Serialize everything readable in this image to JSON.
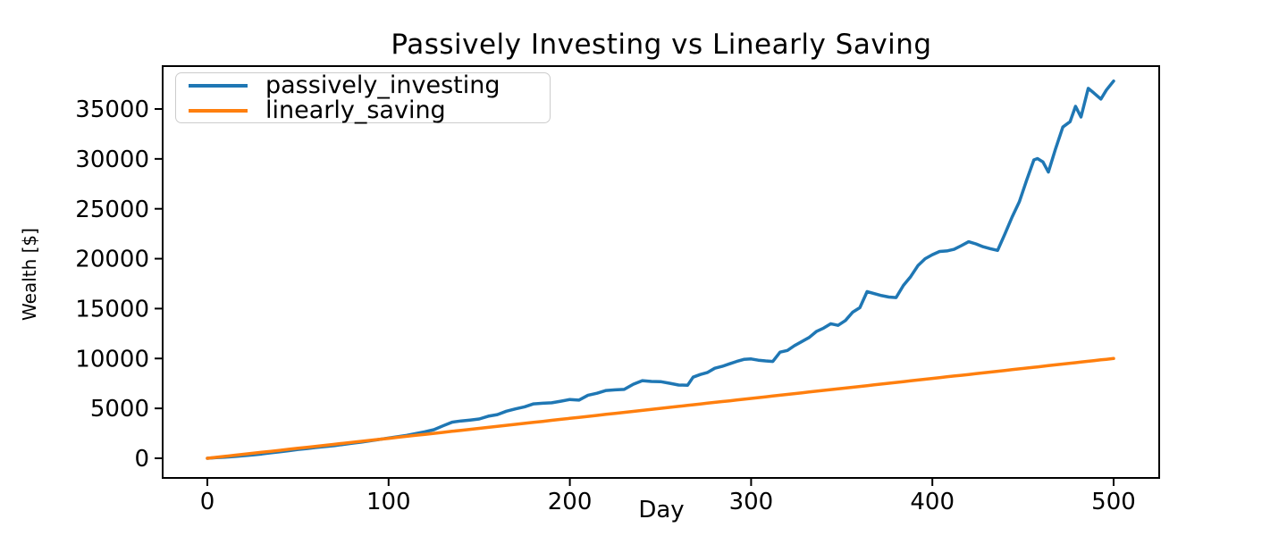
{
  "chart_data": {
    "type": "line",
    "title": "Passively Investing vs Linearly Saving",
    "xlabel": "Day",
    "ylabel": "Wealth [$]",
    "xlim": [
      -25,
      525
    ],
    "ylim": [
      -1960,
      39290
    ],
    "x_ticks": [
      0,
      100,
      200,
      300,
      400,
      500
    ],
    "y_ticks": [
      0,
      5000,
      10000,
      15000,
      20000,
      25000,
      30000,
      35000
    ],
    "grid": false,
    "legend_position": "upper left",
    "axis_color": "#000000",
    "x": [
      0,
      5,
      10,
      15,
      20,
      25,
      30,
      35,
      40,
      45,
      50,
      55,
      60,
      65,
      70,
      75,
      80,
      85,
      90,
      95,
      100,
      105,
      110,
      115,
      120,
      125,
      130,
      135,
      140,
      145,
      150,
      155,
      160,
      165,
      170,
      175,
      180,
      185,
      190,
      195,
      200,
      205,
      210,
      215,
      220,
      225,
      230,
      235,
      240,
      245,
      250,
      255,
      260,
      265,
      268,
      272,
      276,
      280,
      284,
      288,
      292,
      296,
      300,
      304,
      308,
      312,
      316,
      320,
      324,
      328,
      332,
      336,
      340,
      344,
      348,
      352,
      356,
      360,
      364,
      368,
      372,
      376,
      380,
      384,
      388,
      392,
      396,
      400,
      404,
      408,
      412,
      416,
      420,
      424,
      428,
      432,
      436,
      440,
      444,
      448,
      452,
      456,
      458,
      461,
      464,
      468,
      472,
      476,
      479,
      482,
      486,
      489,
      493,
      496,
      500
    ],
    "series": [
      {
        "name": "passively_investing",
        "color": "#1f77b4",
        "values": [
          0,
          60,
          120,
          180,
          260,
          340,
          430,
          550,
          650,
          760,
          880,
          980,
          1080,
          1170,
          1260,
          1390,
          1500,
          1620,
          1750,
          1890,
          2030,
          2160,
          2300,
          2480,
          2660,
          2860,
          3250,
          3620,
          3740,
          3830,
          3940,
          4220,
          4380,
          4720,
          4950,
          5160,
          5450,
          5510,
          5560,
          5720,
          5890,
          5830,
          6320,
          6520,
          6790,
          6860,
          6900,
          7420,
          7780,
          7700,
          7680,
          7520,
          7340,
          7320,
          8130,
          8400,
          8600,
          9020,
          9210,
          9460,
          9700,
          9910,
          9950,
          9830,
          9760,
          9700,
          10630,
          10800,
          11300,
          11700,
          12100,
          12700,
          13040,
          13480,
          13320,
          13800,
          14640,
          15090,
          16700,
          16500,
          16300,
          16160,
          16100,
          17320,
          18200,
          19300,
          20000,
          20400,
          20720,
          20780,
          20940,
          21300,
          21700,
          21480,
          21200,
          21000,
          20830,
          22460,
          24170,
          25700,
          27870,
          29900,
          30030,
          29700,
          28680,
          31030,
          33190,
          33730,
          35270,
          34190,
          37070,
          36620,
          35990,
          36900,
          37800
        ]
      },
      {
        "name": "linearly_saving",
        "color": "#ff7f0e",
        "values": [
          0,
          100,
          200,
          300,
          400,
          500,
          600,
          700,
          800,
          900,
          1000,
          1100,
          1200,
          1300,
          1400,
          1500,
          1600,
          1700,
          1800,
          1900,
          2000,
          2100,
          2200,
          2300,
          2400,
          2500,
          2600,
          2700,
          2800,
          2900,
          3000,
          3100,
          3200,
          3300,
          3400,
          3500,
          3600,
          3700,
          3800,
          3900,
          4000,
          4100,
          4200,
          4300,
          4400,
          4500,
          4600,
          4700,
          4800,
          4900,
          5000,
          5100,
          5200,
          5300,
          5360,
          5440,
          5520,
          5600,
          5680,
          5760,
          5840,
          5920,
          6000,
          6080,
          6160,
          6240,
          6320,
          6400,
          6480,
          6560,
          6640,
          6720,
          6800,
          6880,
          6960,
          7040,
          7120,
          7200,
          7280,
          7360,
          7440,
          7520,
          7600,
          7680,
          7760,
          7840,
          7920,
          8000,
          8080,
          8160,
          8240,
          8320,
          8400,
          8480,
          8560,
          8640,
          8720,
          8800,
          8880,
          8960,
          9040,
          9120,
          9160,
          9220,
          9280,
          9360,
          9440,
          9520,
          9580,
          9640,
          9720,
          9780,
          9860,
          9920,
          10000
        ]
      }
    ]
  }
}
